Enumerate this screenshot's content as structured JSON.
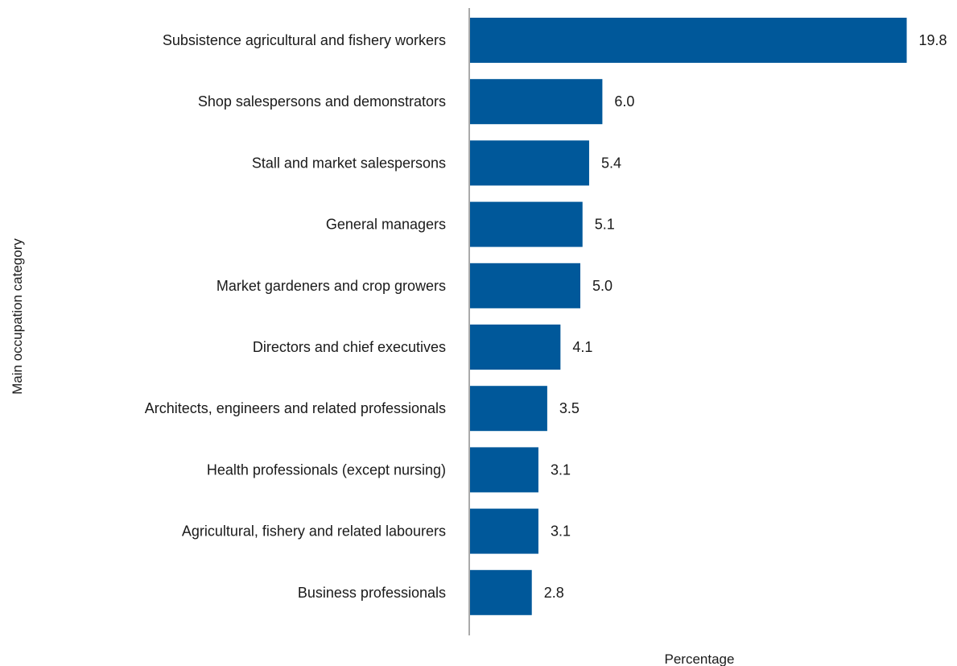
{
  "chart_data": {
    "type": "bar",
    "orientation": "horizontal",
    "title": "",
    "xlabel": "Percentage",
    "ylabel": "Main occupation category",
    "categories": [
      "Subsistence agricultural and fishery workers",
      "Shop salespersons and demonstrators",
      "Stall and market salespersons",
      "General managers",
      "Market gardeners and crop growers",
      "Directors and chief executives",
      "Architects, engineers and related professionals",
      "Health professionals (except nursing)",
      "Agricultural, fishery and related labourers",
      "Business professionals"
    ],
    "values": [
      19.8,
      6.0,
      5.4,
      5.1,
      5.0,
      4.1,
      3.5,
      3.1,
      3.1,
      2.8
    ],
    "value_labels": [
      "19.8",
      "6.0",
      "5.4",
      "5.1",
      "5.0",
      "4.1",
      "3.5",
      "3.1",
      "3.1",
      "2.8"
    ],
    "xlim": [
      0,
      20
    ],
    "grid": false,
    "legend": "none",
    "bar_color": "#00589a"
  }
}
